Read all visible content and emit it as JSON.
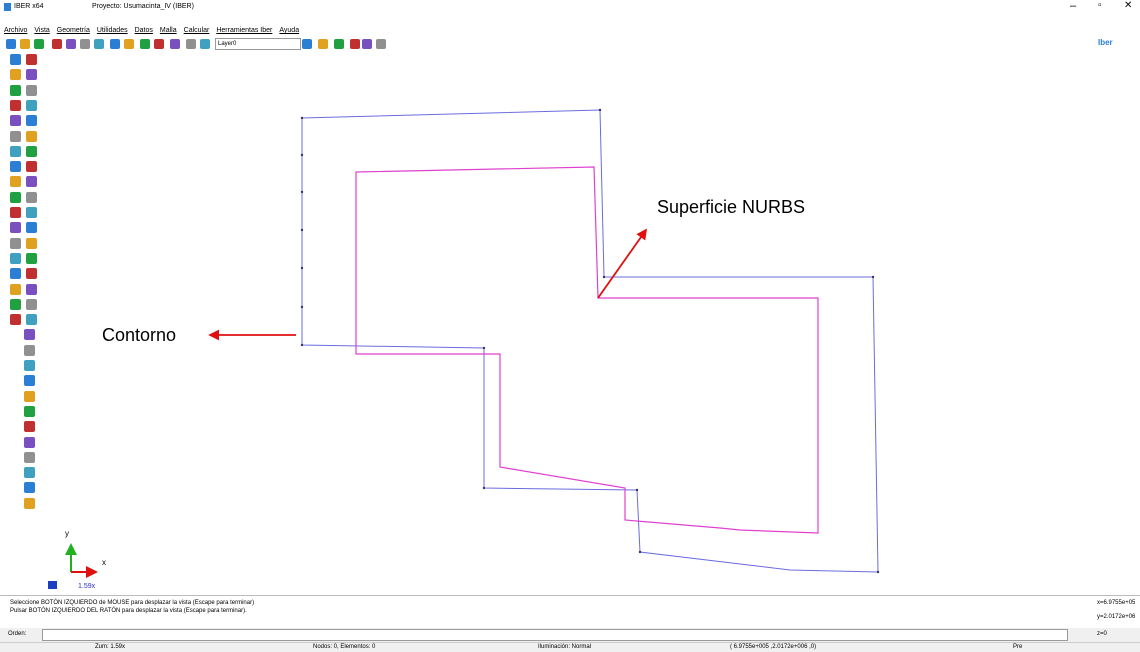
{
  "window": {
    "app": "IBER x64",
    "project": "Proyecto: Usumacinta_IV (IBER)"
  },
  "menu": [
    "Archivo",
    "Vista",
    "Geometría",
    "Utilidades",
    "Datos",
    "Malla",
    "Calcular",
    "Herramientas Iber",
    "Ayuda"
  ],
  "toolbar": {
    "layer": "Layer0",
    "logo": "Iber"
  },
  "canvas": {
    "annotations": [
      "Superficie NURBS",
      "Contorno"
    ],
    "axis_x": "x",
    "axis_y": "y",
    "zoom": "1.59x"
  },
  "messages": [
    "Seleccione BOTÓN IZQUIERDO de MOUSE para desplazar la vista (Escape para terminar)",
    "Pulsar BOTÓN IZQUIERDO DEL RATÓN  para desplazar la vista (Escape para terminar)."
  ],
  "command": {
    "label": "Orden:"
  },
  "coords": [
    "x=6.9755e+05",
    "y=2.0172e+06",
    "z=0"
  ],
  "status": [
    "Zum: 1.59x",
    "Nodos: 0, Elementos: 0",
    "Iluminación: Normal",
    "( 6.9755e+005 ,2.0172e+006 ,0)",
    "Pre"
  ]
}
